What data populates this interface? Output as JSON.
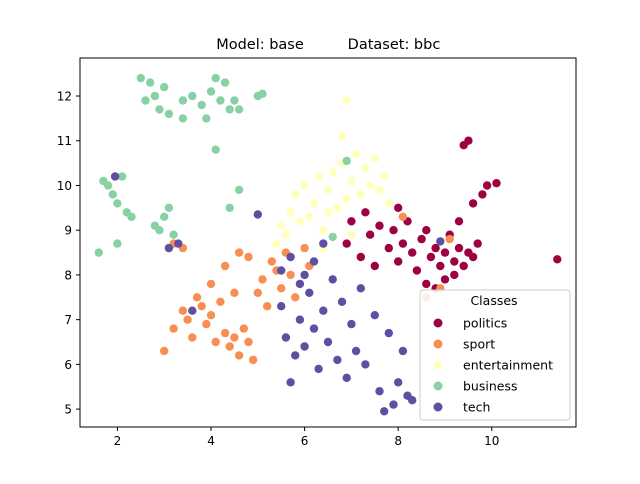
{
  "chart_data": {
    "type": "scatter",
    "title_left": "Model: base",
    "title_right": "Dataset: bbc",
    "xlabel": "",
    "ylabel": "",
    "xlim": [
      1.2,
      11.8
    ],
    "ylim": [
      4.6,
      12.85
    ],
    "xticks": [
      2,
      4,
      6,
      8,
      10
    ],
    "yticks": [
      5,
      6,
      7,
      8,
      9,
      10,
      11,
      12
    ],
    "grid": false,
    "legend": {
      "title": "Classes",
      "placement": "lower-right"
    },
    "series": [
      {
        "name": "politics",
        "color": "#9e0142",
        "points": [
          [
            7.2,
            8.4
          ],
          [
            7.4,
            8.9
          ],
          [
            7.6,
            9.1
          ],
          [
            7.8,
            8.6
          ],
          [
            7.9,
            9.0
          ],
          [
            8.0,
            8.3
          ],
          [
            8.1,
            8.7
          ],
          [
            8.2,
            9.2
          ],
          [
            8.3,
            8.5
          ],
          [
            8.4,
            8.1
          ],
          [
            8.5,
            8.8
          ],
          [
            8.6,
            9.0
          ],
          [
            8.7,
            8.4
          ],
          [
            8.8,
            8.6
          ],
          [
            8.9,
            8.2
          ],
          [
            9.0,
            8.5
          ],
          [
            9.1,
            8.9
          ],
          [
            9.2,
            8.3
          ],
          [
            9.3,
            8.6
          ],
          [
            9.4,
            8.2
          ],
          [
            9.5,
            8.5
          ],
          [
            9.6,
            8.4
          ],
          [
            9.7,
            8.7
          ],
          [
            9.6,
            9.6
          ],
          [
            9.8,
            9.8
          ],
          [
            9.9,
            10.0
          ],
          [
            10.1,
            10.05
          ],
          [
            9.4,
            10.9
          ],
          [
            9.5,
            11.0
          ],
          [
            11.4,
            8.35
          ],
          [
            7.0,
            9.2
          ],
          [
            7.3,
            9.4
          ],
          [
            6.9,
            8.7
          ],
          [
            8.6,
            7.8
          ],
          [
            8.8,
            7.7
          ],
          [
            9.0,
            7.9
          ],
          [
            9.2,
            8.0
          ],
          [
            7.5,
            8.2
          ],
          [
            8.0,
            9.5
          ],
          [
            9.3,
            9.2
          ]
        ]
      },
      {
        "name": "sport",
        "color": "#f98e52",
        "points": [
          [
            3.0,
            6.3
          ],
          [
            3.2,
            6.8
          ],
          [
            3.4,
            7.2
          ],
          [
            3.5,
            7.0
          ],
          [
            3.6,
            6.6
          ],
          [
            3.8,
            7.3
          ],
          [
            3.9,
            6.9
          ],
          [
            4.0,
            7.1
          ],
          [
            4.1,
            6.5
          ],
          [
            4.2,
            7.4
          ],
          [
            4.3,
            6.7
          ],
          [
            4.4,
            6.4
          ],
          [
            4.5,
            6.6
          ],
          [
            4.6,
            6.2
          ],
          [
            4.7,
            6.8
          ],
          [
            4.8,
            6.5
          ],
          [
            4.9,
            6.1
          ],
          [
            5.0,
            7.6
          ],
          [
            5.1,
            7.9
          ],
          [
            5.2,
            7.3
          ],
          [
            5.3,
            8.3
          ],
          [
            5.4,
            8.1
          ],
          [
            5.5,
            7.7
          ],
          [
            5.6,
            8.5
          ],
          [
            5.7,
            8.0
          ],
          [
            5.8,
            7.5
          ],
          [
            6.0,
            8.6
          ],
          [
            6.1,
            8.2
          ],
          [
            4.3,
            8.2
          ],
          [
            4.6,
            8.5
          ],
          [
            4.8,
            8.4
          ],
          [
            3.2,
            8.7
          ],
          [
            3.4,
            8.6
          ],
          [
            4.0,
            7.8
          ],
          [
            4.5,
            7.6
          ],
          [
            3.7,
            7.5
          ],
          [
            8.6,
            7.5
          ],
          [
            8.9,
            7.7
          ],
          [
            9.1,
            8.8
          ],
          [
            8.1,
            9.3
          ]
        ]
      },
      {
        "name": "entertainment",
        "color": "#ffffbe",
        "points": [
          [
            5.5,
            9.1
          ],
          [
            5.7,
            9.4
          ],
          [
            5.8,
            9.8
          ],
          [
            6.0,
            10.0
          ],
          [
            6.1,
            9.3
          ],
          [
            6.2,
            9.6
          ],
          [
            6.3,
            10.2
          ],
          [
            6.4,
            9.0
          ],
          [
            6.5,
            9.9
          ],
          [
            6.6,
            10.3
          ],
          [
            6.7,
            9.5
          ],
          [
            6.8,
            10.5
          ],
          [
            6.9,
            9.7
          ],
          [
            7.0,
            10.1
          ],
          [
            7.1,
            10.7
          ],
          [
            7.2,
            9.8
          ],
          [
            7.3,
            10.4
          ],
          [
            7.4,
            10.0
          ],
          [
            7.5,
            10.6
          ],
          [
            7.6,
            9.9
          ],
          [
            7.7,
            10.2
          ],
          [
            6.9,
            11.9
          ],
          [
            5.4,
            8.7
          ],
          [
            5.6,
            8.9
          ],
          [
            6.4,
            8.6
          ],
          [
            6.8,
            11.1
          ],
          [
            7.0,
            8.9
          ],
          [
            5.9,
            9.2
          ],
          [
            6.5,
            9.4
          ],
          [
            7.8,
            9.6
          ]
        ]
      },
      {
        "name": "business",
        "color": "#88d1a4",
        "points": [
          [
            2.5,
            12.4
          ],
          [
            2.7,
            12.3
          ],
          [
            2.8,
            12.0
          ],
          [
            2.9,
            11.7
          ],
          [
            3.0,
            12.2
          ],
          [
            3.1,
            11.6
          ],
          [
            2.6,
            11.9
          ],
          [
            3.4,
            11.9
          ],
          [
            3.6,
            12.0
          ],
          [
            3.8,
            11.8
          ],
          [
            3.9,
            11.5
          ],
          [
            4.0,
            12.1
          ],
          [
            4.1,
            12.4
          ],
          [
            4.2,
            11.9
          ],
          [
            4.3,
            12.3
          ],
          [
            4.4,
            11.7
          ],
          [
            4.5,
            11.9
          ],
          [
            4.6,
            11.7
          ],
          [
            5.0,
            12.0
          ],
          [
            5.1,
            12.05
          ],
          [
            3.4,
            11.5
          ],
          [
            4.1,
            10.8
          ],
          [
            4.6,
            9.9
          ],
          [
            1.8,
            10.0
          ],
          [
            1.9,
            9.8
          ],
          [
            2.0,
            9.6
          ],
          [
            2.1,
            10.2
          ],
          [
            2.2,
            9.4
          ],
          [
            2.3,
            9.3
          ],
          [
            1.7,
            10.1
          ],
          [
            2.9,
            9.0
          ],
          [
            3.0,
            9.3
          ],
          [
            3.1,
            9.5
          ],
          [
            3.2,
            8.9
          ],
          [
            2.8,
            9.1
          ],
          [
            1.6,
            8.5
          ],
          [
            2.0,
            8.7
          ],
          [
            4.4,
            9.5
          ],
          [
            6.6,
            8.85
          ],
          [
            6.9,
            10.55
          ]
        ]
      },
      {
        "name": "tech",
        "color": "#5e4fa2",
        "points": [
          [
            5.5,
            7.3
          ],
          [
            5.6,
            6.6
          ],
          [
            5.7,
            5.6
          ],
          [
            5.8,
            6.2
          ],
          [
            5.9,
            7.0
          ],
          [
            6.0,
            6.4
          ],
          [
            6.1,
            7.6
          ],
          [
            6.2,
            6.8
          ],
          [
            6.3,
            5.9
          ],
          [
            6.4,
            7.2
          ],
          [
            6.5,
            6.5
          ],
          [
            6.6,
            7.9
          ],
          [
            6.7,
            6.1
          ],
          [
            6.8,
            7.4
          ],
          [
            6.9,
            5.7
          ],
          [
            7.0,
            6.9
          ],
          [
            7.1,
            6.3
          ],
          [
            7.2,
            7.7
          ],
          [
            7.3,
            6.0
          ],
          [
            7.5,
            7.1
          ],
          [
            7.6,
            5.4
          ],
          [
            7.8,
            6.7
          ],
          [
            7.9,
            5.1
          ],
          [
            8.0,
            5.6
          ],
          [
            8.1,
            6.3
          ],
          [
            8.2,
            5.3
          ],
          [
            8.3,
            5.2
          ],
          [
            7.7,
            4.95
          ],
          [
            5.5,
            8.1
          ],
          [
            5.7,
            8.4
          ],
          [
            6.0,
            8.0
          ],
          [
            6.2,
            8.3
          ],
          [
            6.4,
            8.7
          ],
          [
            5.0,
            9.35
          ],
          [
            3.1,
            8.6
          ],
          [
            3.3,
            8.7
          ],
          [
            3.6,
            7.2
          ],
          [
            1.95,
            10.2
          ],
          [
            8.9,
            8.75
          ],
          [
            5.9,
            7.8
          ]
        ]
      }
    ]
  }
}
